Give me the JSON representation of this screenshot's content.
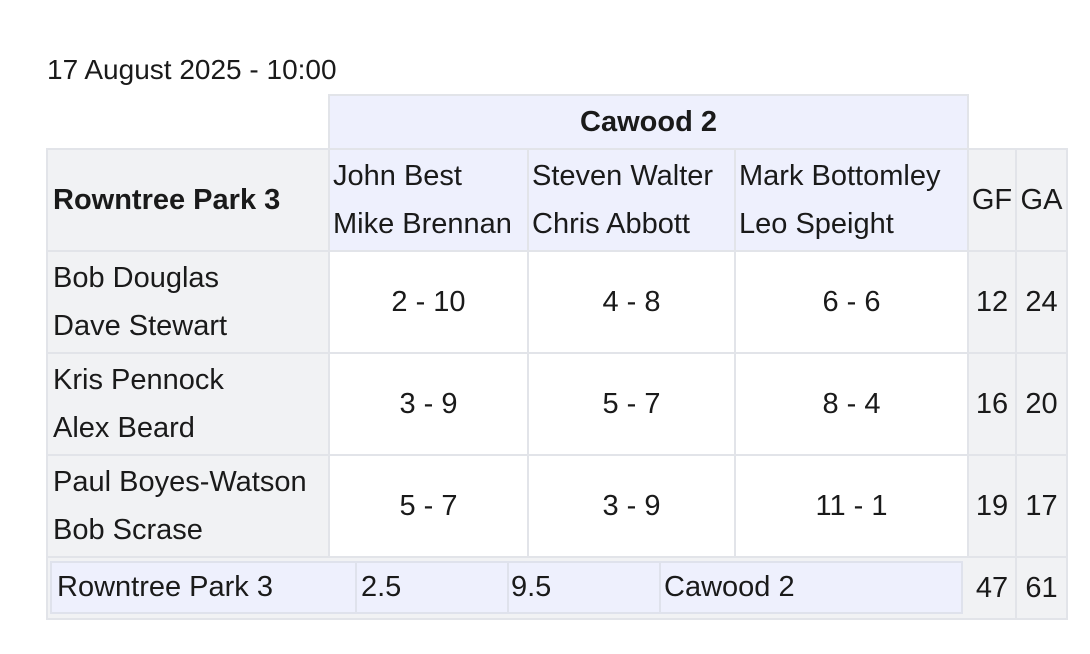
{
  "datetime": "17 August 2025 - 10:00",
  "away_team": "Cawood 2",
  "home_team": "Rowntree Park 3",
  "away_pairs": [
    {
      "p1": "John Best",
      "p2": "Mike Brennan"
    },
    {
      "p1": "Steven Walter",
      "p2": "Chris Abbott"
    },
    {
      "p1": "Mark Bottomley",
      "p2": "Leo Speight"
    }
  ],
  "headers": {
    "gf": "GF",
    "ga": "GA"
  },
  "rows": [
    {
      "p1": "Bob Douglas",
      "p2": "Dave Stewart",
      "scores": [
        "2 - 10",
        "4 - 8",
        "6 - 6"
      ],
      "gf": "12",
      "ga": "24"
    },
    {
      "p1": "Kris Pennock",
      "p2": "Alex Beard",
      "scores": [
        "3 - 9",
        "5 - 7",
        "8 - 4"
      ],
      "gf": "16",
      "ga": "20"
    },
    {
      "p1": "Paul Boyes-Watson",
      "p2": "Bob Scrase",
      "scores": [
        "5 - 7",
        "3 - 9",
        "11 - 1"
      ],
      "gf": "19",
      "ga": "17"
    }
  ],
  "summary": {
    "home": "Rowntree Park 3",
    "home_points": "2.5",
    "away_points": "9.5",
    "away": "Cawood 2",
    "gf": "47",
    "ga": "61"
  }
}
